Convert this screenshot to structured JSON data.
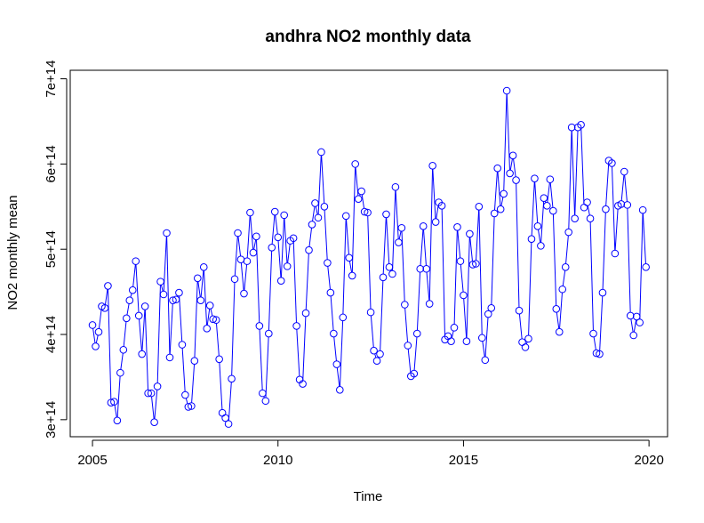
{
  "chart_data": {
    "type": "line",
    "title": "andhra NO2 monthly data",
    "xlabel": "Time",
    "ylabel": "NO2 monthly mean",
    "x_ticks": [
      {
        "value": 2005,
        "label": "2005"
      },
      {
        "value": 2010,
        "label": "2010"
      },
      {
        "value": 2015,
        "label": "2015"
      },
      {
        "value": 2020,
        "label": "2020"
      }
    ],
    "y_ticks": [
      {
        "value": 300000000000000.0,
        "label": "3e+14"
      },
      {
        "value": 400000000000000.0,
        "label": "4e+14"
      },
      {
        "value": 500000000000000.0,
        "label": "5e+14"
      },
      {
        "value": 600000000000000.0,
        "label": "6e+14"
      },
      {
        "value": 700000000000000.0,
        "label": "7e+14"
      }
    ],
    "xlim": [
      2004.4,
      2020.5
    ],
    "ylim": [
      280000000000000.0,
      710000000000000.0
    ],
    "grid": false,
    "series": [
      {
        "color": "#0000ff",
        "markers": "open-circle",
        "x_start": 2005,
        "frequency": "monthly",
        "values": [
          411000000000000.0,
          386000000000000.0,
          403000000000000.0,
          433000000000000.0,
          431000000000000.0,
          457000000000000.0,
          320000000000000.0,
          321000000000000.0,
          299000000000000.0,
          355000000000000.0,
          382000000000000.0,
          419000000000000.0,
          440000000000000.0,
          452000000000000.0,
          486000000000000.0,
          422000000000000.0,
          377000000000000.0,
          433000000000000.0,
          331000000000000.0,
          331000000000000.0,
          297000000000000.0,
          339000000000000.0,
          462000000000000.0,
          447000000000000.0,
          519000000000000.0,
          373000000000000.0,
          440000000000000.0,
          441000000000000.0,
          449000000000000.0,
          388000000000000.0,
          329000000000000.0,
          315000000000000.0,
          316000000000000.0,
          369000000000000.0,
          466000000000000.0,
          440000000000000.0,
          479000000000000.0,
          407000000000000.0,
          434000000000000.0,
          418000000000000.0,
          417000000000000.0,
          371000000000000.0,
          308000000000000.0,
          302000000000000.0,
          295000000000000.0,
          348000000000000.0,
          465000000000000.0,
          519000000000000.0,
          488000000000000.0,
          448000000000000.0,
          486000000000000.0,
          543000000000000.0,
          496000000000000.0,
          515000000000000.0,
          410000000000000.0,
          331000000000000.0,
          322000000000000.0,
          401000000000000.0,
          502000000000000.0,
          544000000000000.0,
          514000000000000.0,
          463000000000000.0,
          540000000000000.0,
          480000000000000.0,
          510000000000000.0,
          513000000000000.0,
          410000000000000.0,
          347000000000000.0,
          342000000000000.0,
          425000000000000.0,
          499000000000000.0,
          529000000000000.0,
          554000000000000.0,
          537000000000000.0,
          614000000000000.0,
          550000000000000.0,
          484000000000000.0,
          449000000000000.0,
          401000000000000.0,
          365000000000000.0,
          335000000000000.0,
          420000000000000.0,
          539000000000000.0,
          490000000000000.0,
          469000000000000.0,
          600000000000000.0,
          559000000000000.0,
          568000000000000.0,
          544000000000000.0,
          543000000000000.0,
          426000000000000.0,
          381000000000000.0,
          369000000000000.0,
          377000000000000.0,
          467000000000000.0,
          541000000000000.0,
          479000000000000.0,
          471000000000000.0,
          573000000000000.0,
          508000000000000.0,
          525000000000000.0,
          435000000000000.0,
          387000000000000.0,
          351000000000000.0,
          354000000000000.0,
          401000000000000.0,
          477000000000000.0,
          527000000000000.0,
          477000000000000.0,
          436000000000000.0,
          598000000000000.0,
          532000000000000.0,
          555000000000000.0,
          551000000000000.0,
          394000000000000.0,
          398000000000000.0,
          392000000000000.0,
          408000000000000.0,
          526000000000000.0,
          486000000000000.0,
          446000000000000.0,
          392000000000000.0,
          518000000000000.0,
          482000000000000.0,
          483000000000000.0,
          550000000000000.0,
          396000000000000.0,
          370000000000000.0,
          424000000000000.0,
          431000000000000.0,
          542000000000000.0,
          595000000000000.0,
          547000000000000.0,
          565000000000000.0,
          686000000000000.0,
          589000000000000.0,
          610000000000000.0,
          581000000000000.0,
          428000000000000.0,
          391000000000000.0,
          385000000000000.0,
          395000000000000.0,
          512000000000000.0,
          583000000000000.0,
          527000000000000.0,
          504000000000000.0,
          560000000000000.0,
          551000000000000.0,
          582000000000000.0,
          545000000000000.0,
          430000000000000.0,
          403000000000000.0,
          453000000000000.0,
          479000000000000.0,
          520000000000000.0,
          643000000000000.0,
          536000000000000.0,
          643000000000000.0,
          646000000000000.0,
          549000000000000.0,
          555000000000000.0,
          536000000000000.0,
          401000000000000.0,
          378000000000000.0,
          377000000000000.0,
          449000000000000.0,
          547000000000000.0,
          604000000000000.0,
          601000000000000.0,
          495000000000000.0,
          551000000000000.0,
          553000000000000.0,
          591000000000000.0,
          552000000000000.0,
          422000000000000.0,
          399000000000000.0,
          421000000000000.0,
          414000000000000.0,
          546000000000000.0,
          479000000000000.0
        ]
      }
    ]
  }
}
